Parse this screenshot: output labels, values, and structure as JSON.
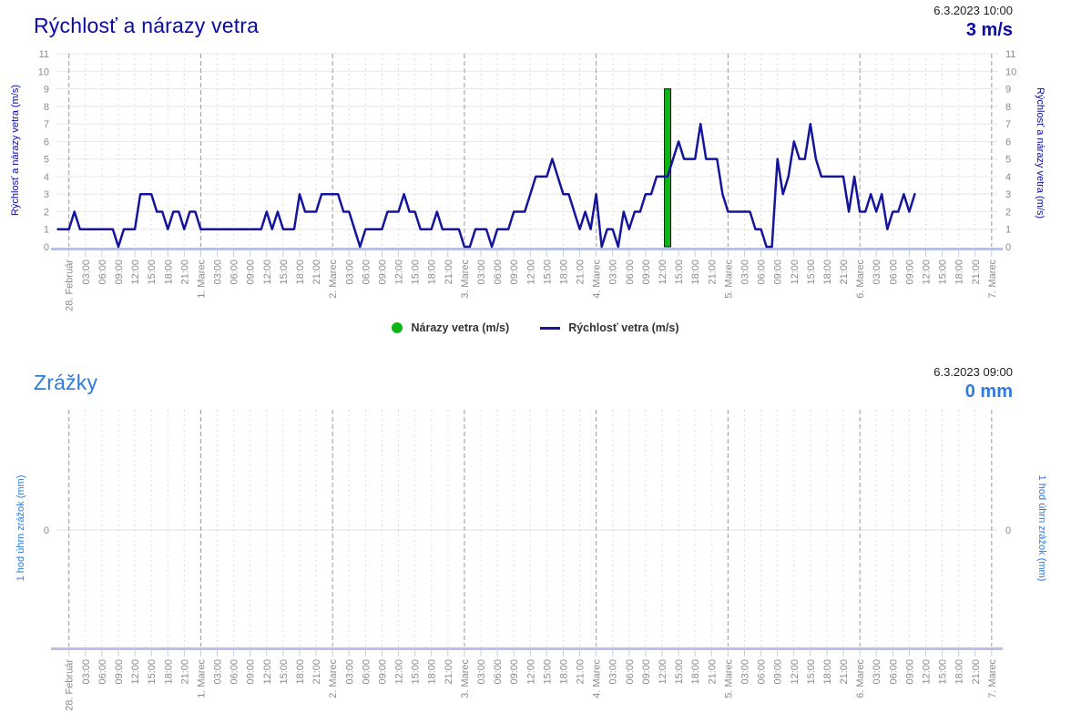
{
  "wind": {
    "title": "Rýchlosť a nárazy vetra",
    "timestamp": "6.3.2023 10:00",
    "current_value": "3 m/s",
    "axis_label": "Rýchlosť a nárazy vetra (m/s)"
  },
  "precip": {
    "title": "Zrážky",
    "timestamp": "6.3.2023 09:00",
    "current_value": "0 mm",
    "axis_label": "1 hod úhrn zrážok (mm)"
  },
  "legend": {
    "gusts": "Nárazy vetra (m/s)",
    "speed": "Rýchlosť vetra (m/s)"
  },
  "x_axis": {
    "day_labels": [
      "28. Február",
      "1. Marec",
      "2. Marec",
      "3. Marec",
      "4. Marec",
      "5. Marec",
      "6. Marec",
      "7. Marec"
    ],
    "time_labels": [
      "03:00",
      "06:00",
      "09:00",
      "12:00",
      "15:00",
      "18:00",
      "21:00"
    ],
    "tick_interval_hours": 3
  },
  "colors": {
    "wind_accent": "#0a0aa4",
    "wind_line": "#14149c",
    "gust_green": "#0db514",
    "precip_accent": "#2e7bd9",
    "axis_text": "#8a8a8a",
    "grid_major": "#e8e8e8",
    "grid_minor_dot": "#d4d4d4",
    "grid_day": "#9a9a9a",
    "baseline": "#b7c1e3",
    "tick": "#c6cde6",
    "date_text": "#1c1c1c"
  },
  "chart_data": [
    {
      "type": "line",
      "title": "Rýchlosť a nárazy vetra",
      "ylabel": "Rýchlosť a nárazy vetra (m/s)",
      "ylim": [
        0,
        11
      ],
      "y_ticks": [
        0,
        1,
        2,
        3,
        4,
        5,
        6,
        7,
        8,
        9,
        10,
        11
      ],
      "x_unit": "hours since 28.2.2023 00:00",
      "x_range_hours": [
        -2,
        168
      ],
      "grid": "on",
      "legend_position": "bottom-center",
      "series": [
        {
          "name": "Rýchlosť vetra (m/s)",
          "type": "line",
          "start_hour": -2,
          "step_hours": 1,
          "values": [
            1,
            1,
            1,
            2,
            1,
            1,
            1,
            1,
            1,
            1,
            1,
            0,
            1,
            1,
            1,
            3,
            3,
            3,
            2,
            2,
            1,
            2,
            2,
            1,
            2,
            2,
            1,
            1,
            1,
            1,
            1,
            1,
            1,
            1,
            1,
            1,
            1,
            1,
            2,
            1,
            2,
            1,
            1,
            1,
            3,
            2,
            2,
            2,
            3,
            3,
            3,
            3,
            2,
            2,
            1,
            0,
            1,
            1,
            1,
            1,
            2,
            2,
            2,
            3,
            2,
            2,
            1,
            1,
            1,
            2,
            1,
            1,
            1,
            1,
            0,
            0,
            1,
            1,
            1,
            0,
            1,
            1,
            1,
            2,
            2,
            2,
            3,
            4,
            4,
            4,
            5,
            4,
            3,
            3,
            2,
            1,
            2,
            1,
            3,
            0,
            1,
            1,
            0,
            2,
            1,
            2,
            2,
            3,
            3,
            4,
            4,
            4,
            5,
            6,
            5,
            5,
            5,
            7,
            5,
            5,
            5,
            3,
            2,
            2,
            2,
            2,
            2,
            1,
            1,
            0,
            0,
            5,
            3,
            4,
            6,
            5,
            5,
            7,
            5,
            4,
            4,
            4,
            4,
            4,
            2,
            4,
            2,
            2,
            3,
            2,
            3,
            1,
            2,
            2,
            3,
            2,
            3
          ]
        },
        {
          "name": "Nárazy vetra (m/s)",
          "type": "column",
          "points": [
            {
              "hour": 109,
              "value": 9
            }
          ]
        }
      ]
    },
    {
      "type": "bar",
      "title": "Zrážky",
      "ylabel": "1 hod úhrn zrážok (mm)",
      "y_ticks": [
        0
      ],
      "x_range_hours": [
        -2,
        168
      ],
      "values": [],
      "note_visible_data": "no precipitation bars shown"
    }
  ]
}
